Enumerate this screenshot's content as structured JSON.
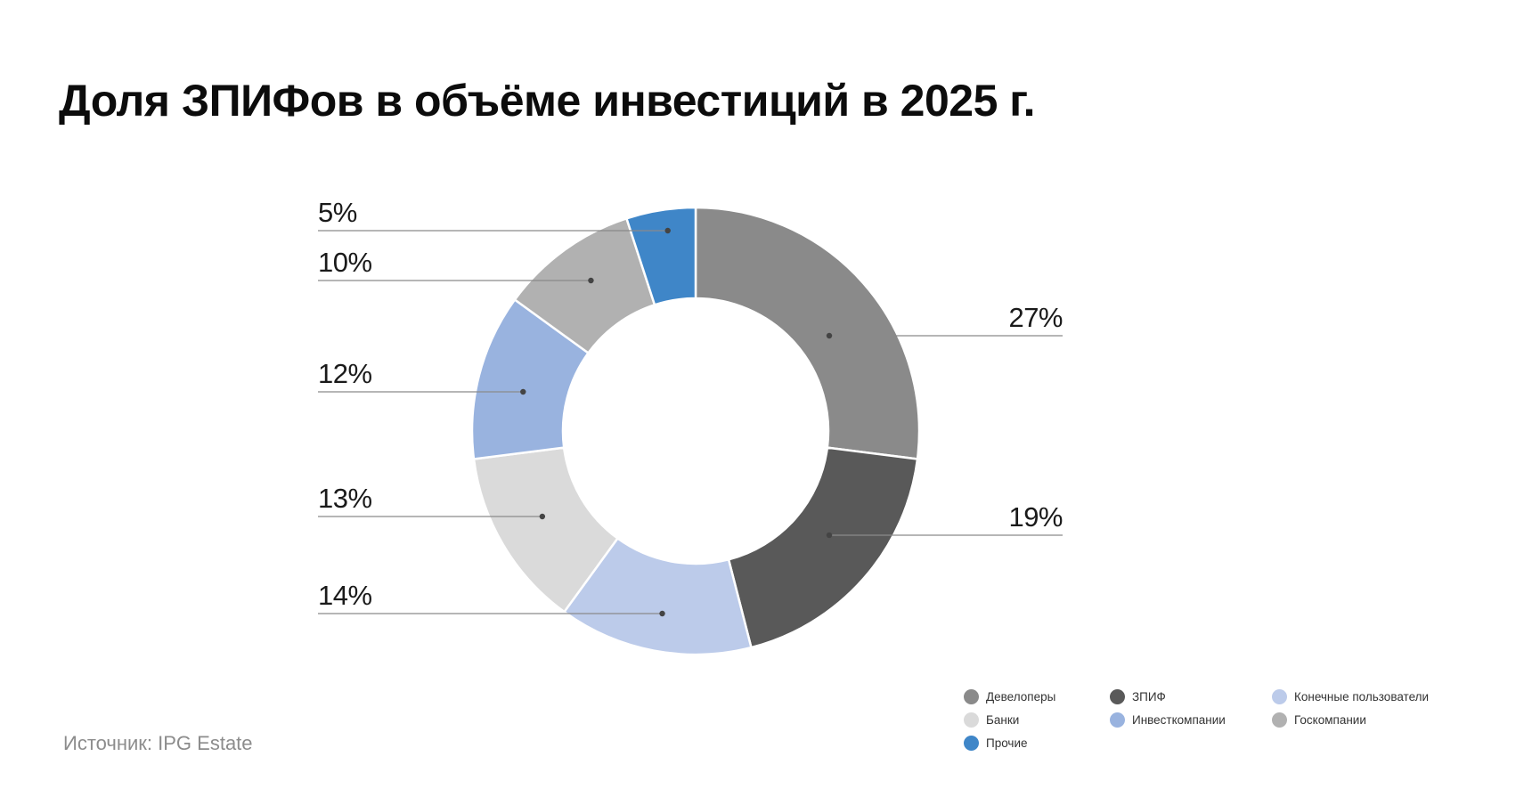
{
  "title": "Доля ЗПИФов в объёме инвестиций в 2025 г.",
  "source": "Источник: IPG Estate",
  "chart_data": {
    "type": "pie",
    "donut": true,
    "title": "Доля ЗПИФов в объёме инвестиций в 2025 г.",
    "unit": "%",
    "slices": [
      {
        "name": "Девелоперы",
        "value": 27,
        "label": "27%",
        "color": "#8a8a8a"
      },
      {
        "name": "ЗПИФ",
        "value": 19,
        "label": "19%",
        "color": "#595959"
      },
      {
        "name": "Конечные пользователи",
        "value": 14,
        "label": "14%",
        "color": "#bccbea"
      },
      {
        "name": "Банки",
        "value": 13,
        "label": "13%",
        "color": "#dadada"
      },
      {
        "name": "Инвесткомпании",
        "value": 12,
        "label": "12%",
        "color": "#99b3df"
      },
      {
        "name": "Госкомпании",
        "value": 10,
        "label": "10%",
        "color": "#b1b1b1"
      },
      {
        "name": "Прочие",
        "value": 5,
        "label": "5%",
        "color": "#3f86c8"
      }
    ],
    "legend_position": "bottom-right"
  }
}
